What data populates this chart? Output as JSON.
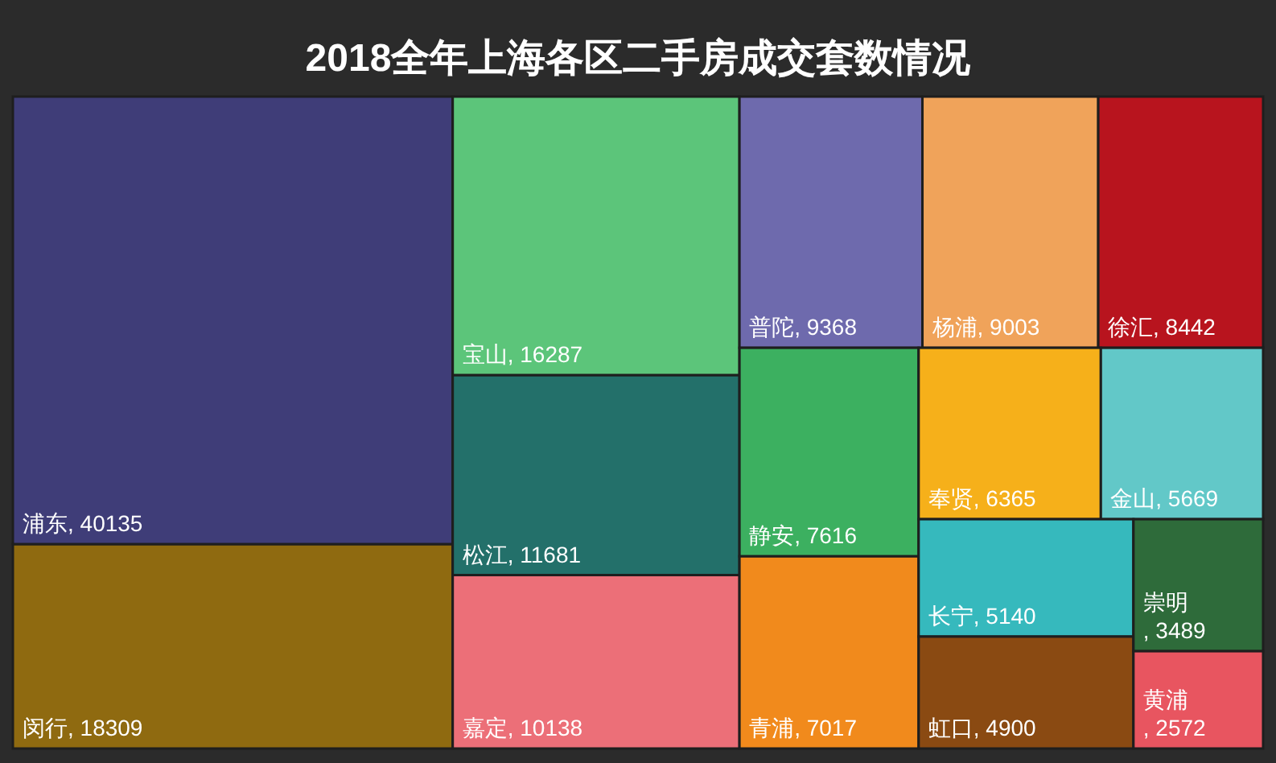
{
  "chart_data": {
    "type": "other",
    "title": "2018全年上海各区二手房成交套数情况",
    "categories": [
      "浦东",
      "闵行",
      "宝山",
      "松江",
      "嘉定",
      "普陀",
      "杨浦",
      "徐汇",
      "静安",
      "青浦",
      "奉贤",
      "金山",
      "长宁",
      "虹口",
      "崇明",
      "黄浦"
    ],
    "values": [
      40135,
      18309,
      16287,
      11681,
      10138,
      9368,
      9003,
      8442,
      7616,
      7017,
      6365,
      5669,
      5140,
      4900,
      3489,
      2572
    ],
    "colors": [
      "#3f3d78",
      "#8f6a10",
      "#5cc57a",
      "#23706a",
      "#ec6f78",
      "#6e6aad",
      "#f0a35a",
      "#b8141e",
      "#3cb060",
      "#f18a1c",
      "#f6b01a",
      "#62c8c8",
      "#36b9bd",
      "#8a4a12",
      "#2e6b3a",
      "#e85560"
    ],
    "value_labels": [
      ", 40135",
      ", 18309",
      ", 16287",
      ", 11681",
      ", 10138",
      ", 9368",
      ", 9003",
      ", 8442",
      ", 7616",
      ", 7017",
      ", 6365",
      ", 5669",
      ", 5140",
      ", 4900",
      ", 3489",
      ", 2572"
    ]
  }
}
